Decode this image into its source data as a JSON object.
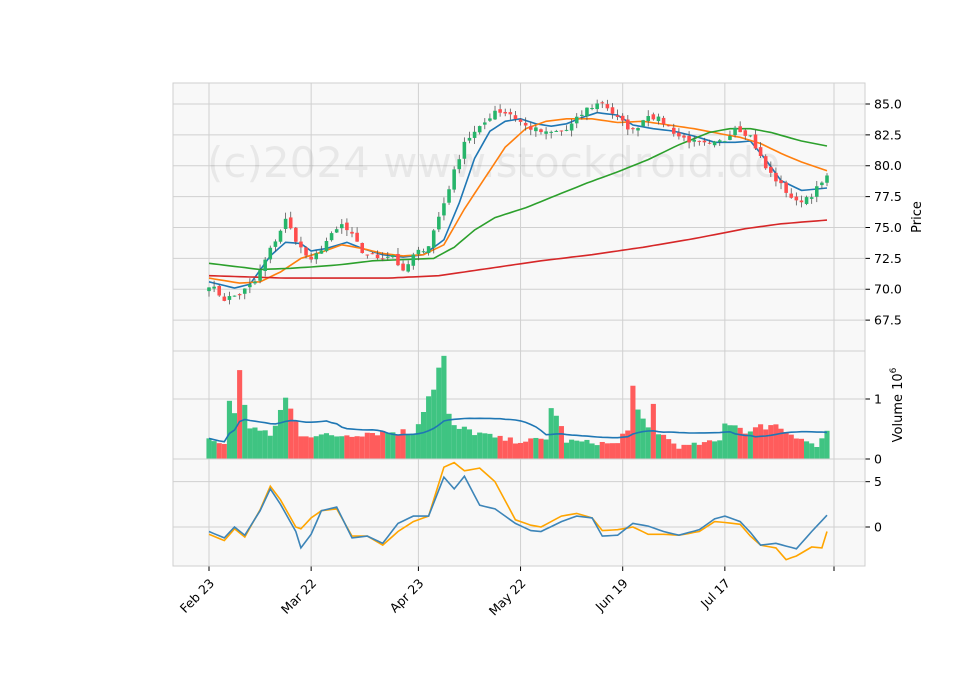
{
  "watermark": "(c)2024 www.stockdroid.de",
  "colors": {
    "up": "#26b56a",
    "down": "#ff4d4d",
    "ma_fast": "#1f77b4",
    "ma_mid": "#ff7f0e",
    "ma_slow": "#2ca02c",
    "ma_long": "#d62728",
    "vol_up": "#3fc482",
    "vol_down": "#ff5c5c",
    "vol_ma": "#1f77b4",
    "osc_a": "#3d85b8",
    "osc_b": "#ffa500"
  },
  "chart_data": [
    {
      "type": "candlestick",
      "ylabel": "Price",
      "ylim": [
        65.0,
        86.7
      ],
      "yticks": [
        "67.5",
        "70.0",
        "72.5",
        "75.0",
        "77.5",
        "80.0",
        "82.5",
        "85.0"
      ],
      "xticks": [
        "Feb 23",
        "Mar 22",
        "Apr 23",
        "May 22",
        "Jun 19",
        "Jul 17"
      ],
      "xtick_index": [
        0,
        20,
        41,
        61,
        81,
        101
      ],
      "n": 122,
      "grid": true,
      "ohlc_anchors": [
        [
          0,
          70.4
        ],
        [
          3,
          69.2
        ],
        [
          6,
          69.6
        ],
        [
          9,
          70.6
        ],
        [
          12,
          73.2
        ],
        [
          15,
          75.6
        ],
        [
          18,
          73.3
        ],
        [
          20,
          72.2
        ],
        [
          23,
          73.9
        ],
        [
          26,
          75.2
        ],
        [
          28,
          74.3
        ],
        [
          30,
          73.0
        ],
        [
          33,
          72.6
        ],
        [
          36,
          72.8
        ],
        [
          38,
          71.3
        ],
        [
          40,
          72.7
        ],
        [
          43,
          73.6
        ],
        [
          46,
          77.0
        ],
        [
          48,
          79.5
        ],
        [
          50,
          82.0
        ],
        [
          53,
          83.0
        ],
        [
          56,
          84.5
        ],
        [
          59,
          84.2
        ],
        [
          62,
          83.2
        ],
        [
          66,
          82.6
        ],
        [
          70,
          82.9
        ],
        [
          74,
          84.6
        ],
        [
          77,
          85.2
        ],
        [
          80,
          83.8
        ],
        [
          83,
          82.8
        ],
        [
          86,
          84.2
        ],
        [
          89,
          83.5
        ],
        [
          92,
          82.4
        ],
        [
          95,
          81.9
        ],
        [
          98,
          81.6
        ],
        [
          101,
          82.1
        ],
        [
          103,
          83.2
        ],
        [
          106,
          82.4
        ],
        [
          109,
          79.8
        ],
        [
          112,
          78.4
        ],
        [
          115,
          77.0
        ],
        [
          118,
          77.7
        ],
        [
          121,
          79.0
        ]
      ],
      "volume_anchors": [
        [
          0,
          0.32
        ],
        [
          3,
          0.25
        ],
        [
          4,
          1.05
        ],
        [
          5,
          0.72
        ],
        [
          6,
          1.37
        ],
        [
          8,
          0.55
        ],
        [
          12,
          0.38
        ],
        [
          15,
          1.0
        ],
        [
          18,
          0.42
        ],
        [
          24,
          0.38
        ],
        [
          32,
          0.45
        ],
        [
          40,
          0.45
        ],
        [
          46,
          1.68
        ],
        [
          47,
          0.7
        ],
        [
          48,
          0.52
        ],
        [
          52,
          0.45
        ],
        [
          56,
          0.35
        ],
        [
          60,
          0.3
        ],
        [
          66,
          0.32
        ],
        [
          67,
          0.92
        ],
        [
          70,
          0.3
        ],
        [
          80,
          0.25
        ],
        [
          82,
          0.55
        ],
        [
          83,
          1.15
        ],
        [
          84,
          0.72
        ],
        [
          86,
          0.5
        ],
        [
          87,
          0.9
        ],
        [
          88,
          0.45
        ],
        [
          92,
          0.2
        ],
        [
          100,
          0.3
        ],
        [
          101,
          0.65
        ],
        [
          106,
          0.45
        ],
        [
          110,
          0.6
        ],
        [
          116,
          0.35
        ],
        [
          119,
          0.2
        ],
        [
          121,
          0.48
        ]
      ],
      "oscillator_anchors": {
        "a": [
          [
            0,
            -0.5
          ],
          [
            3,
            -1.2
          ],
          [
            5,
            0
          ],
          [
            7,
            -0.9
          ],
          [
            10,
            1.8
          ],
          [
            12,
            4.2
          ],
          [
            14,
            2.5
          ],
          [
            17,
            -0.5
          ],
          [
            18,
            -2.3
          ],
          [
            20,
            -0.8
          ],
          [
            22,
            1.8
          ],
          [
            25,
            2.2
          ],
          [
            28,
            -1.2
          ],
          [
            31,
            -1.0
          ],
          [
            34,
            -1.8
          ],
          [
            37,
            0.4
          ],
          [
            40,
            1.2
          ],
          [
            43,
            1.2
          ],
          [
            46,
            5.5
          ],
          [
            48,
            4.2
          ],
          [
            50,
            5.6
          ],
          [
            53,
            2.4
          ],
          [
            56,
            2.0
          ],
          [
            60,
            0.4
          ],
          [
            63,
            -0.4
          ],
          [
            65,
            -0.5
          ],
          [
            69,
            0.6
          ],
          [
            72,
            1.2
          ],
          [
            75,
            1.0
          ],
          [
            77,
            -1.0
          ],
          [
            80,
            -0.9
          ],
          [
            83,
            0.4
          ],
          [
            86,
            0.1
          ],
          [
            89,
            -0.5
          ],
          [
            92,
            -0.9
          ],
          [
            96,
            -0.3
          ],
          [
            99,
            0.9
          ],
          [
            101,
            1.2
          ],
          [
            104,
            0.6
          ],
          [
            106,
            -0.6
          ],
          [
            108,
            -2.0
          ],
          [
            111,
            -1.8
          ],
          [
            115,
            -2.4
          ],
          [
            118,
            -0.5
          ],
          [
            121,
            1.3
          ]
        ],
        "b": [
          [
            0,
            -0.8
          ],
          [
            3,
            -1.5
          ],
          [
            5,
            -0.2
          ],
          [
            7,
            -1.1
          ],
          [
            10,
            1.9
          ],
          [
            12,
            4.5
          ],
          [
            14,
            3.0
          ],
          [
            17,
            0
          ],
          [
            18,
            -0.2
          ],
          [
            20,
            1.0
          ],
          [
            22,
            1.8
          ],
          [
            25,
            2.0
          ],
          [
            28,
            -1.0
          ],
          [
            31,
            -1.0
          ],
          [
            34,
            -2.0
          ],
          [
            37,
            -0.5
          ],
          [
            40,
            0.6
          ],
          [
            43,
            1.2
          ],
          [
            46,
            6.6
          ],
          [
            48,
            7.1
          ],
          [
            50,
            6.2
          ],
          [
            53,
            6.5
          ],
          [
            56,
            5.0
          ],
          [
            60,
            0.8
          ],
          [
            63,
            0.2
          ],
          [
            65,
            0
          ],
          [
            69,
            1.2
          ],
          [
            72,
            1.5
          ],
          [
            75,
            1.0
          ],
          [
            77,
            -0.4
          ],
          [
            80,
            -0.3
          ],
          [
            83,
            0
          ],
          [
            86,
            -0.8
          ],
          [
            89,
            -0.8
          ],
          [
            92,
            -0.9
          ],
          [
            96,
            -0.5
          ],
          [
            99,
            0.6
          ],
          [
            101,
            0.5
          ],
          [
            104,
            0.3
          ],
          [
            106,
            -1.0
          ],
          [
            108,
            -2.0
          ],
          [
            111,
            -2.3
          ],
          [
            113,
            -3.6
          ],
          [
            115,
            -3.2
          ],
          [
            118,
            -2.2
          ],
          [
            120,
            -2.3
          ],
          [
            121,
            -0.5
          ]
        ]
      },
      "moving_averages": [
        {
          "key": "ma_fast",
          "anchors": [
            [
              0,
              70.6
            ],
            [
              5,
              70.1
            ],
            [
              8,
              70.4
            ],
            [
              12,
              72.7
            ],
            [
              15,
              73.8
            ],
            [
              18,
              73.7
            ],
            [
              20,
              73.1
            ],
            [
              23,
              73.3
            ],
            [
              27,
              73.8
            ],
            [
              30,
              73.3
            ],
            [
              34,
              72.8
            ],
            [
              38,
              72.6
            ],
            [
              42,
              72.8
            ],
            [
              46,
              74.0
            ],
            [
              49,
              77.0
            ],
            [
              52,
              80.6
            ],
            [
              55,
              82.8
            ],
            [
              58,
              83.6
            ],
            [
              61,
              83.8
            ],
            [
              64,
              83.4
            ],
            [
              67,
              83.2
            ],
            [
              70,
              83.4
            ],
            [
              73,
              83.9
            ],
            [
              76,
              84.3
            ],
            [
              80,
              84.1
            ],
            [
              83,
              83.3
            ],
            [
              87,
              83.0
            ],
            [
              91,
              82.8
            ],
            [
              95,
              82.4
            ],
            [
              99,
              81.9
            ],
            [
              103,
              81.9
            ],
            [
              106,
              82.0
            ],
            [
              109,
              80.5
            ],
            [
              112,
              78.8
            ],
            [
              116,
              78.0
            ],
            [
              121,
              78.2
            ]
          ]
        },
        {
          "key": "ma_mid",
          "anchors": [
            [
              0,
              70.9
            ],
            [
              6,
              70.5
            ],
            [
              10,
              70.6
            ],
            [
              14,
              71.4
            ],
            [
              18,
              72.5
            ],
            [
              22,
              73.0
            ],
            [
              26,
              73.6
            ],
            [
              30,
              73.3
            ],
            [
              34,
              72.9
            ],
            [
              38,
              72.7
            ],
            [
              42,
              72.8
            ],
            [
              46,
              73.6
            ],
            [
              50,
              76.5
            ],
            [
              54,
              79.0
            ],
            [
              58,
              81.5
            ],
            [
              62,
              83.0
            ],
            [
              66,
              83.6
            ],
            [
              70,
              83.8
            ],
            [
              75,
              83.8
            ],
            [
              80,
              83.5
            ],
            [
              85,
              83.6
            ],
            [
              90,
              83.3
            ],
            [
              95,
              83.0
            ],
            [
              100,
              82.6
            ],
            [
              104,
              82.3
            ],
            [
              108,
              81.8
            ],
            [
              112,
              81.0
            ],
            [
              116,
              80.3
            ],
            [
              121,
              79.6
            ]
          ]
        },
        {
          "key": "ma_slow",
          "anchors": [
            [
              0,
              72.1
            ],
            [
              10,
              71.6
            ],
            [
              16,
              71.7
            ],
            [
              20,
              71.8
            ],
            [
              26,
              72.0
            ],
            [
              32,
              72.3
            ],
            [
              38,
              72.4
            ],
            [
              44,
              72.5
            ],
            [
              48,
              73.4
            ],
            [
              52,
              74.8
            ],
            [
              56,
              75.8
            ],
            [
              62,
              76.6
            ],
            [
              68,
              77.6
            ],
            [
              74,
              78.6
            ],
            [
              80,
              79.5
            ],
            [
              86,
              80.5
            ],
            [
              92,
              81.7
            ],
            [
              98,
              82.7
            ],
            [
              102,
              83.0
            ],
            [
              106,
              83.0
            ],
            [
              110,
              82.7
            ],
            [
              116,
              82.0
            ],
            [
              121,
              81.6
            ]
          ]
        },
        {
          "key": "ma_long",
          "anchors": [
            [
              0,
              71.1
            ],
            [
              15,
              70.9
            ],
            [
              25,
              70.9
            ],
            [
              35,
              70.9
            ],
            [
              45,
              71.1
            ],
            [
              55,
              71.7
            ],
            [
              65,
              72.3
            ],
            [
              75,
              72.8
            ],
            [
              85,
              73.4
            ],
            [
              95,
              74.1
            ],
            [
              105,
              74.9
            ],
            [
              112,
              75.3
            ],
            [
              121,
              75.6
            ]
          ]
        }
      ],
      "volume": {
        "ylabel": "Volume  10",
        "exponent": "6",
        "ylim": [
          0,
          1.8
        ],
        "yticks": [
          "0",
          "1"
        ]
      },
      "oscillator": {
        "ylim": [
          -4.3,
          7.5
        ],
        "yticks": [
          "0",
          "5"
        ]
      }
    }
  ]
}
